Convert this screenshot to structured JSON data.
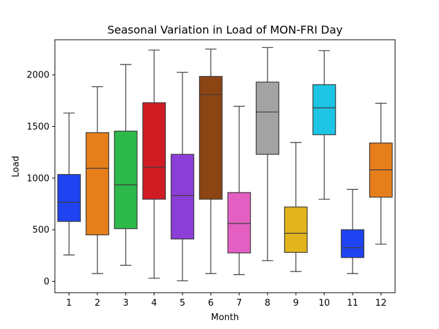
{
  "chart_data": {
    "type": "box",
    "title": "Seasonal Variation in Load of MON-FRI Day",
    "xlabel": "Month",
    "ylabel": "Load",
    "ylim": [
      -110,
      2340
    ],
    "yticks": [
      0,
      500,
      1000,
      1500,
      2000
    ],
    "grid": false,
    "categories": [
      "1",
      "2",
      "3",
      "4",
      "5",
      "6",
      "7",
      "8",
      "9",
      "10",
      "11",
      "12"
    ],
    "boxes": [
      {
        "category": "1",
        "min": 255,
        "q1": 580,
        "median": 765,
        "q3": 1035,
        "max": 1630,
        "color": "#1f43f0"
      },
      {
        "category": "2",
        "min": 75,
        "q1": 450,
        "median": 1095,
        "q3": 1440,
        "max": 1885,
        "color": "#e67e1c"
      },
      {
        "category": "3",
        "min": 155,
        "q1": 510,
        "median": 935,
        "q3": 1455,
        "max": 2100,
        "color": "#2db84a"
      },
      {
        "category": "4",
        "min": 30,
        "q1": 795,
        "median": 1105,
        "q3": 1730,
        "max": 2240,
        "color": "#d11c24"
      },
      {
        "category": "5",
        "min": 5,
        "q1": 410,
        "median": 830,
        "q3": 1230,
        "max": 2025,
        "color": "#8b3fd6"
      },
      {
        "category": "6",
        "min": 75,
        "q1": 795,
        "median": 1810,
        "q3": 1985,
        "max": 2250,
        "color": "#8b4513"
      },
      {
        "category": "7",
        "min": 65,
        "q1": 275,
        "median": 560,
        "q3": 860,
        "max": 1695,
        "color": "#e35fc1"
      },
      {
        "category": "8",
        "min": 200,
        "q1": 1230,
        "median": 1640,
        "q3": 1930,
        "max": 2265,
        "color": "#a3a3a3"
      },
      {
        "category": "9",
        "min": 95,
        "q1": 280,
        "median": 465,
        "q3": 720,
        "max": 1345,
        "color": "#e3b51c"
      },
      {
        "category": "10",
        "min": 795,
        "q1": 1420,
        "median": 1680,
        "q3": 1905,
        "max": 2235,
        "color": "#1dc4e3"
      },
      {
        "category": "11",
        "min": 75,
        "q1": 230,
        "median": 325,
        "q3": 500,
        "max": 890,
        "color": "#1f43f0"
      },
      {
        "category": "12",
        "min": 360,
        "q1": 815,
        "median": 1080,
        "q3": 1340,
        "max": 1725,
        "color": "#e67e1c"
      }
    ]
  }
}
